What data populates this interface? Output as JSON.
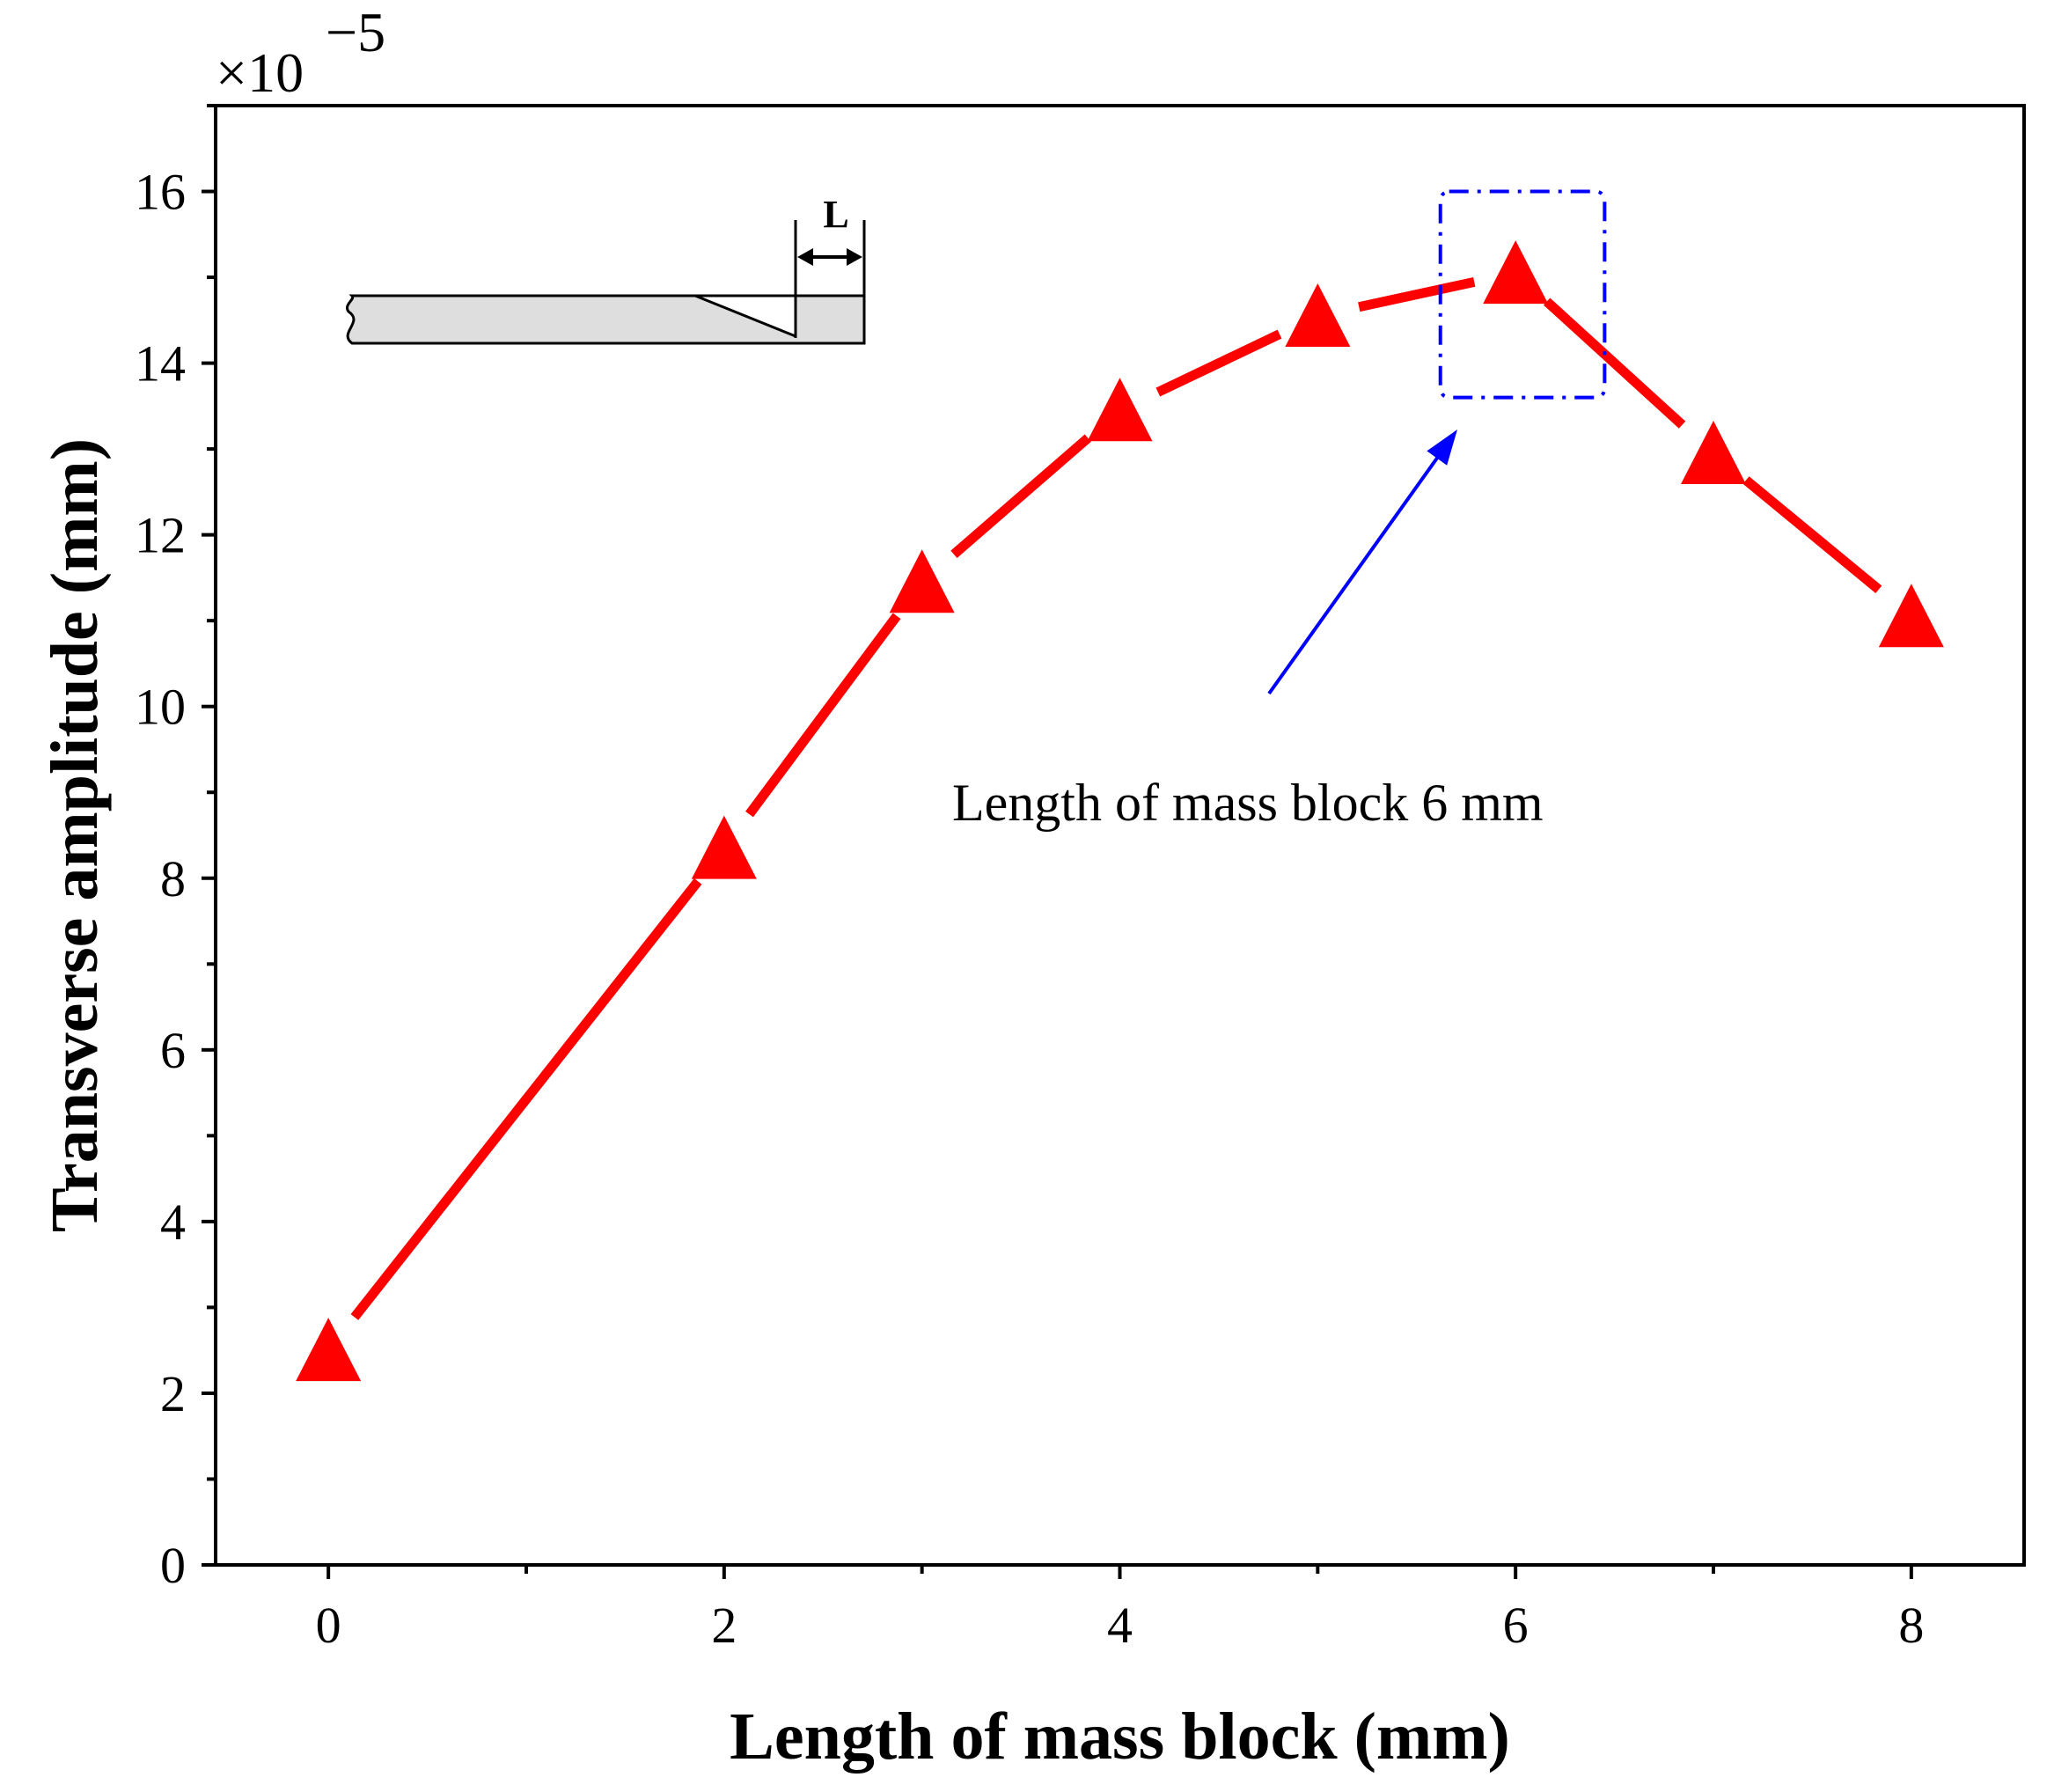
{
  "chart_data": {
    "type": "line",
    "xlabel": "Length of mass block (mm)",
    "ylabel": "Transverse amplitude (mm)",
    "y_multiplier": "×10",
    "y_multiplier_exponent": "−5",
    "xlim": [
      -0.57,
      8.57
    ],
    "ylim": [
      0,
      17
    ],
    "x_ticks": [
      0,
      2,
      4,
      6,
      8
    ],
    "x_tick_labels": [
      "0",
      "2",
      "4",
      "6",
      "8"
    ],
    "y_ticks": [
      0,
      2,
      4,
      6,
      8,
      10,
      12,
      14,
      16
    ],
    "y_tick_labels": [
      "0",
      "2",
      "4",
      "6",
      "8",
      "10",
      "12",
      "14",
      "16"
    ],
    "series": [
      {
        "name": "Transverse amplitude",
        "color": "#ff0000",
        "marker": "triangle",
        "x": [
          0,
          2,
          3,
          4,
          5,
          6,
          7,
          8
        ],
        "y": [
          2.5,
          8.35,
          11.45,
          13.45,
          14.55,
          15.05,
          12.95,
          11.05
        ]
      }
    ],
    "annotation": {
      "text": "Length of mass block 6 mm",
      "target_x": 6,
      "box_x_range": [
        5.62,
        6.45
      ],
      "box_y_range": [
        13.6,
        16.0
      ],
      "box_color": "#0000ff",
      "arrow_color": "#0000ff"
    },
    "inset": {
      "label": "L"
    },
    "grid": false,
    "legend": "none"
  }
}
